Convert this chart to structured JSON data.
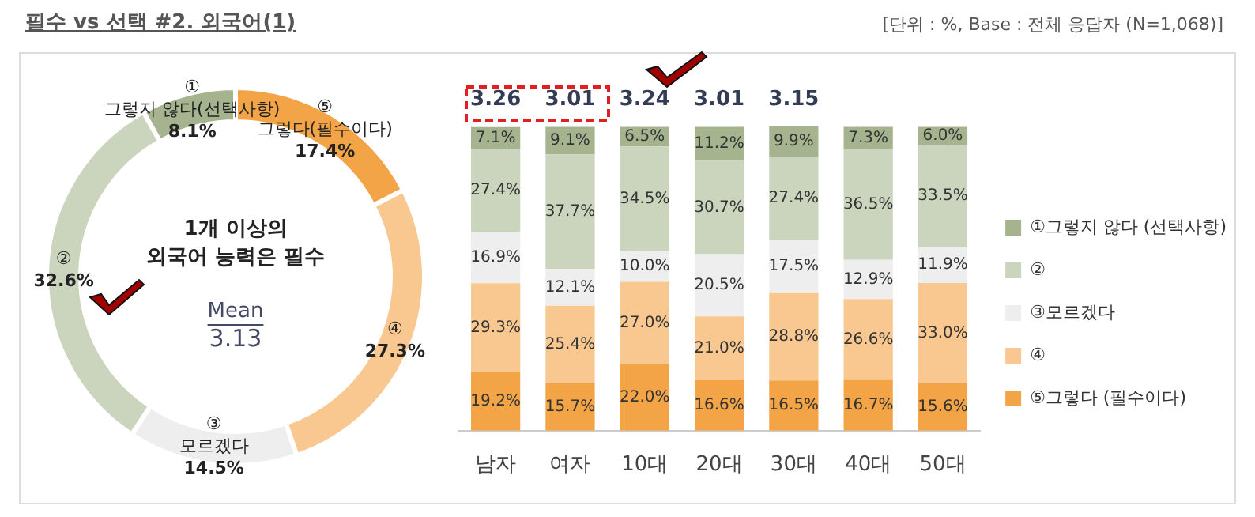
{
  "chart_data": [
    {
      "type": "donut",
      "title": "1개 이상의 외국어 능력은 필수",
      "categories": [
        "⑤ 그렇다(필수이다)",
        "④",
        "③ 모르겠다",
        "②",
        "① 그렇지 않다(선택사항)"
      ],
      "values": [
        17.4,
        27.3,
        14.5,
        32.6,
        8.1
      ],
      "colors": [
        "#f2a447",
        "#f8c890",
        "#eeeeee",
        "#cbd4bd",
        "#a5b38e"
      ],
      "value_labels": [
        "17.4%",
        "27.3%",
        "14.5%",
        "32.6%",
        "8.1%"
      ],
      "legend": false,
      "annotations": [
        "필수 vs 선택 #2. 외국어(1)",
        "[단위 : %, Base : 전체 응답자 (N=1,068)]",
        "Mean",
        "3.13"
      ]
    },
    {
      "type": "bar",
      "stacked": true,
      "categories": [
        "남자",
        "여자",
        "10대",
        "20대",
        "30대",
        "40대",
        "50대"
      ],
      "tick_labels": "x",
      "grid": false,
      "legend": "right",
      "series": [
        {
          "name": "⑤그렇다 (필수이다)",
          "color": "#f2a447",
          "values": [
            19.2,
            15.7,
            22.0,
            16.6,
            16.5,
            16.7,
            15.6
          ],
          "value_labels": [
            "19.2%",
            "15.7%",
            "22.0%",
            "16.6%",
            "16.5%",
            "16.7%",
            "15.6%"
          ]
        },
        {
          "name": "④",
          "color": "#f8c890",
          "values": [
            29.3,
            25.4,
            27.0,
            21.0,
            28.8,
            26.6,
            33.0
          ],
          "value_labels": [
            "29.3%",
            "25.4%",
            "27.0%",
            "21.0%",
            "28.8%",
            "26.6%",
            "33.0%"
          ]
        },
        {
          "name": "③모르겠다",
          "color": "#eeeeee",
          "values": [
            16.9,
            12.1,
            10.0,
            20.5,
            17.5,
            12.9,
            11.9
          ],
          "value_labels": [
            "16.9%",
            "12.1%",
            "10.0%",
            "20.5%",
            "17.5%",
            "12.9%",
            "11.9%"
          ]
        },
        {
          "name": "②",
          "color": "#cbd4bd",
          "values": [
            27.4,
            37.7,
            34.5,
            30.7,
            27.4,
            36.5,
            33.5
          ],
          "value_labels": [
            "27.4%",
            "37.7%",
            "34.5%",
            "30.7%",
            "27.4%",
            "36.5%",
            "33.5%"
          ]
        },
        {
          "name": "①그렇지 않다 (선택사항)",
          "color": "#a5b38e",
          "values": [
            7.1,
            9.1,
            6.5,
            11.2,
            9.9,
            7.3,
            6.0
          ],
          "value_labels": [
            "7.1%",
            "9.1%",
            "6.5%",
            "11.2%",
            "9.9%",
            "7.3%",
            "6.0%"
          ]
        }
      ],
      "annotations": [
        "3.26",
        "3.01",
        "3.24",
        "3.01",
        "3.15"
      ]
    }
  ]
}
